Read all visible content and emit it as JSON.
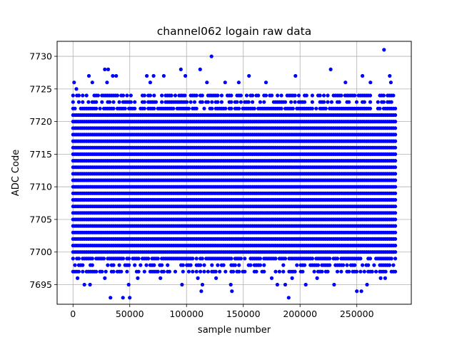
{
  "chart_data": {
    "type": "scatter",
    "title": "channel062 logain raw data",
    "xlabel": "sample number",
    "ylabel": "ADC Code",
    "xlim": [
      -14000,
      298000
    ],
    "ylim": [
      7692.0,
      7732.3
    ],
    "x_range_data": [
      0,
      285000
    ],
    "xticks": [
      0,
      50000,
      100000,
      150000,
      200000,
      250000
    ],
    "xtick_labels": [
      "0",
      "50000",
      "100000",
      "150000",
      "200000",
      "250000"
    ],
    "yticks": [
      7695,
      7700,
      7705,
      7710,
      7715,
      7720,
      7725,
      7730
    ],
    "ytick_labels": [
      "7695",
      "7700",
      "7705",
      "7710",
      "7715",
      "7720",
      "7725",
      "7730"
    ],
    "grid": true,
    "legend": "none",
    "marker": "circle",
    "color": "#0000ff",
    "dense_band": {
      "y_min": 7697,
      "y_max": 7724,
      "x_min": 0,
      "x_max": 285000
    },
    "outliers": [
      {
        "x": 1000,
        "y": 7726
      },
      {
        "x": 3000,
        "y": 7725
      },
      {
        "x": 14000,
        "y": 7727
      },
      {
        "x": 17000,
        "y": 7726
      },
      {
        "x": 28000,
        "y": 7728
      },
      {
        "x": 31000,
        "y": 7728
      },
      {
        "x": 30000,
        "y": 7726
      },
      {
        "x": 35000,
        "y": 7727
      },
      {
        "x": 38000,
        "y": 7727
      },
      {
        "x": 65000,
        "y": 7727
      },
      {
        "x": 68000,
        "y": 7726
      },
      {
        "x": 71000,
        "y": 7727
      },
      {
        "x": 80000,
        "y": 7727
      },
      {
        "x": 95000,
        "y": 7728
      },
      {
        "x": 99000,
        "y": 7727
      },
      {
        "x": 112000,
        "y": 7728
      },
      {
        "x": 118000,
        "y": 7726
      },
      {
        "x": 122000,
        "y": 7730
      },
      {
        "x": 134000,
        "y": 7726
      },
      {
        "x": 146000,
        "y": 7726
      },
      {
        "x": 155000,
        "y": 7727
      },
      {
        "x": 170000,
        "y": 7726
      },
      {
        "x": 196000,
        "y": 7727
      },
      {
        "x": 227000,
        "y": 7728
      },
      {
        "x": 240000,
        "y": 7726
      },
      {
        "x": 255000,
        "y": 7727
      },
      {
        "x": 262000,
        "y": 7726
      },
      {
        "x": 274000,
        "y": 7731
      },
      {
        "x": 279000,
        "y": 7727
      },
      {
        "x": 280000,
        "y": 7726
      },
      {
        "x": 4000,
        "y": 7696
      },
      {
        "x": 10000,
        "y": 7695
      },
      {
        "x": 15000,
        "y": 7695
      },
      {
        "x": 28000,
        "y": 7696
      },
      {
        "x": 33000,
        "y": 7693
      },
      {
        "x": 44000,
        "y": 7693
      },
      {
        "x": 49000,
        "y": 7695
      },
      {
        "x": 50000,
        "y": 7693
      },
      {
        "x": 57000,
        "y": 7696
      },
      {
        "x": 77000,
        "y": 7696
      },
      {
        "x": 96000,
        "y": 7695
      },
      {
        "x": 110000,
        "y": 7696
      },
      {
        "x": 113000,
        "y": 7694
      },
      {
        "x": 114000,
        "y": 7695
      },
      {
        "x": 126000,
        "y": 7696
      },
      {
        "x": 139000,
        "y": 7695
      },
      {
        "x": 140000,
        "y": 7694
      },
      {
        "x": 175000,
        "y": 7696
      },
      {
        "x": 180000,
        "y": 7695
      },
      {
        "x": 187000,
        "y": 7695
      },
      {
        "x": 190000,
        "y": 7693
      },
      {
        "x": 193000,
        "y": 7696
      },
      {
        "x": 205000,
        "y": 7695
      },
      {
        "x": 215000,
        "y": 7696
      },
      {
        "x": 230000,
        "y": 7695
      },
      {
        "x": 250000,
        "y": 7694
      },
      {
        "x": 254000,
        "y": 7694
      },
      {
        "x": 259000,
        "y": 7695
      },
      {
        "x": 271000,
        "y": 7696
      },
      {
        "x": 275000,
        "y": 7696
      }
    ]
  }
}
